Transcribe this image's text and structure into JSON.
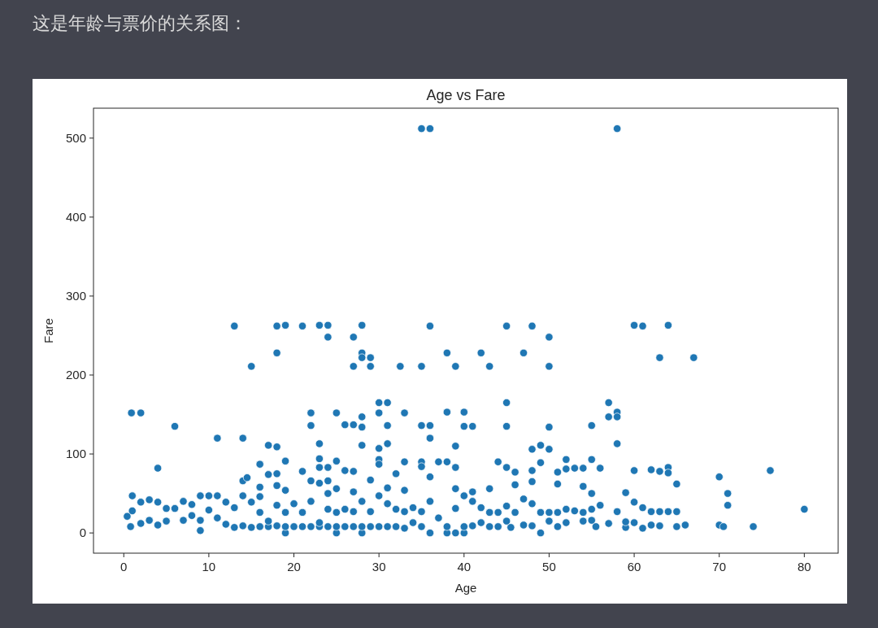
{
  "chart_data": {
    "type": "scatter",
    "title": "Age vs Fare",
    "xlabel": "Age",
    "ylabel": "Fare",
    "annotations": [
      "这是年龄与票价的关系图："
    ],
    "x": [
      35,
      36,
      58,
      13,
      18,
      19,
      21,
      23,
      24,
      28,
      36,
      45,
      48,
      60,
      61,
      64,
      24,
      27,
      50,
      18,
      28,
      38,
      42,
      47,
      28,
      29,
      63,
      67,
      15,
      27,
      29,
      32.5,
      35,
      39,
      43,
      50,
      30,
      31,
      45,
      57,
      0.9,
      2,
      22,
      25,
      30,
      33,
      38,
      40,
      58,
      28,
      57,
      58,
      6,
      22,
      26,
      27,
      28,
      31,
      35,
      36,
      40,
      41,
      45,
      50,
      55,
      11,
      14,
      36,
      23,
      31,
      58,
      17,
      18,
      28,
      30,
      39,
      48,
      49,
      50,
      19,
      23,
      25,
      30,
      33,
      35,
      37,
      38,
      44,
      49,
      52,
      55,
      4,
      16,
      23,
      24,
      30,
      35,
      39,
      45,
      56,
      64,
      76,
      17,
      18,
      21,
      26,
      27,
      32,
      46,
      48,
      51,
      52,
      53,
      54,
      60,
      62,
      63,
      64,
      70,
      14,
      14.5,
      22,
      23,
      24,
      29,
      36,
      48,
      65,
      16,
      18,
      19,
      25,
      27,
      31,
      33,
      39,
      41,
      43,
      46,
      51,
      54,
      55,
      59,
      71,
      0.4,
      0.8,
      1,
      1,
      2,
      2,
      3,
      3,
      4,
      4,
      5,
      5,
      6,
      7,
      7,
      8,
      8,
      9,
      9,
      9,
      10,
      10,
      11,
      11,
      12,
      12,
      13,
      13,
      14,
      14,
      15,
      15,
      16,
      16,
      16,
      17,
      17,
      18,
      18,
      19,
      19,
      19,
      20,
      20,
      21,
      21,
      22,
      22,
      23,
      23,
      24,
      24,
      24,
      25,
      25,
      25,
      26,
      26,
      27,
      27,
      28,
      28,
      28,
      29,
      29,
      30,
      30,
      31,
      31,
      32,
      32,
      33,
      33,
      34,
      34,
      35,
      35,
      36,
      36,
      37,
      38,
      38,
      39,
      39,
      40,
      40,
      40,
      41,
      41,
      42,
      42,
      43,
      43,
      44,
      44,
      45,
      45,
      45.5,
      46,
      47,
      47,
      48,
      48,
      49,
      49,
      50,
      50,
      51,
      51,
      52,
      52,
      53,
      54,
      54,
      55,
      55,
      55.5,
      56,
      57,
      58,
      59,
      59,
      60,
      60,
      61,
      61,
      62,
      62,
      63,
      63,
      64,
      65,
      65,
      66,
      70,
      70.5,
      71,
      74,
      80
    ],
    "values": [
      512,
      512,
      512,
      262,
      262,
      263,
      262,
      263,
      263,
      263,
      262,
      262,
      262,
      263,
      262,
      263,
      248,
      248,
      248,
      228,
      228,
      228,
      228,
      228,
      222,
      222,
      222,
      222,
      211,
      211,
      211,
      211,
      211,
      211,
      211,
      211,
      165,
      165,
      165,
      165,
      152,
      152,
      152,
      152,
      152,
      152,
      153,
      153,
      153,
      147,
      147,
      147,
      135,
      136,
      137,
      137,
      134,
      136,
      136,
      136,
      135,
      135,
      135,
      134,
      136,
      120,
      120,
      120,
      113,
      113,
      113,
      111,
      109,
      111,
      107,
      110,
      106,
      111,
      106,
      91,
      94,
      91,
      93,
      90,
      90,
      90,
      90,
      90,
      89,
      93,
      93,
      82,
      87,
      83,
      83,
      87,
      84,
      83,
      83,
      82,
      83,
      79,
      74,
      75,
      78,
      79,
      78,
      75,
      77,
      79,
      77,
      81,
      82,
      82,
      79,
      80,
      78,
      76,
      71,
      66,
      70,
      66,
      63,
      66,
      67,
      71,
      65,
      62,
      58,
      60,
      54,
      56,
      52,
      57,
      54,
      56,
      52,
      56,
      61,
      62,
      59,
      50,
      51,
      50,
      21,
      8,
      28,
      47,
      39,
      12,
      42,
      16,
      39,
      10,
      31,
      15,
      31,
      40,
      16,
      36,
      22,
      47,
      3,
      16,
      47,
      29,
      47,
      19,
      39,
      11,
      32,
      7,
      47,
      9,
      39,
      7,
      8,
      26,
      46,
      8,
      15,
      9,
      35,
      0,
      8,
      26,
      8,
      37,
      8,
      26,
      8,
      40,
      8,
      13,
      8,
      30,
      50,
      0,
      8,
      26,
      8,
      30,
      8,
      27,
      0,
      8,
      40,
      8,
      27,
      8,
      47,
      8,
      37,
      8,
      30,
      6,
      27,
      13,
      32,
      8,
      27,
      0,
      40,
      19,
      0,
      8,
      0,
      31,
      0,
      8,
      47,
      9,
      40,
      13,
      32,
      8,
      26,
      8,
      26,
      15,
      34,
      7,
      26,
      10,
      43,
      9,
      37,
      0,
      26,
      15,
      26,
      8,
      26,
      13,
      30,
      28,
      15,
      26,
      16,
      30,
      8,
      35,
      12,
      27,
      7,
      14,
      13,
      39,
      6,
      32,
      10,
      27,
      9,
      27,
      27,
      8,
      27,
      10,
      10,
      8,
      35,
      8,
      30
    ],
    "color": "#1f77b4",
    "marker": "circle",
    "xlim": [
      -3.56,
      83.98
    ],
    "ylim": [
      -25.6,
      537.9
    ],
    "xticks": [
      0,
      10,
      20,
      30,
      40,
      50,
      60,
      70,
      80
    ],
    "yticks": [
      0,
      100,
      200,
      300,
      400,
      500
    ],
    "grid": false
  }
}
